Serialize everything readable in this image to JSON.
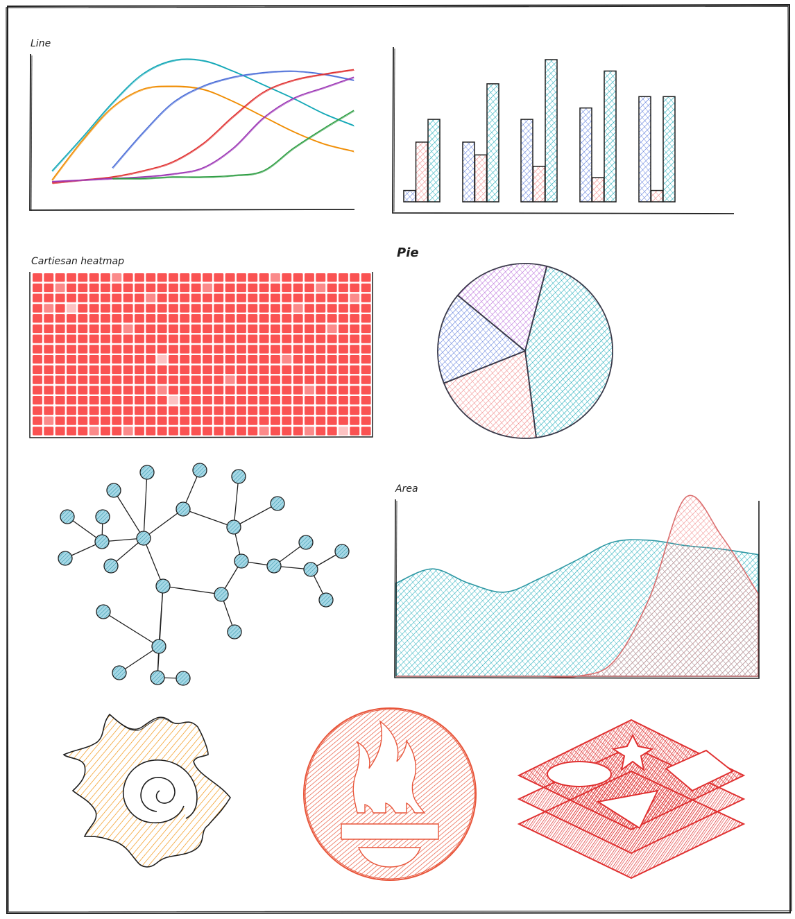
{
  "colors": {
    "ink": "#1e1e1e",
    "teal": "#12a7b6",
    "teal_fill": "#8fd3dc",
    "salmon": "#f08080",
    "salmon_fill": "#f7b3b3",
    "blue": "#4d6fd8",
    "blue_fill": "#9fb6ec",
    "orange": "#f08c00",
    "red": "#e03131",
    "purple": "#9c36b5",
    "purple_fill": "#d9a4ec",
    "green": "#2f9e44",
    "heat": "#fa5252",
    "heat_light": "#fcc2c2",
    "node_fill": "#a5d8e6",
    "grafana_fill": "#f7b267",
    "prom_fill": "#ef6a4c",
    "stack_fill": "#e03131"
  },
  "chart_data": [
    {
      "type": "line",
      "title": "Line",
      "x": [
        0,
        1,
        2,
        3,
        4,
        5,
        6,
        7,
        8,
        9,
        10
      ],
      "ylim": [
        0,
        100
      ],
      "series": [
        {
          "color": "teal",
          "values": [
            20,
            42,
            65,
            84,
            93,
            93,
            86,
            77,
            68,
            58,
            50
          ]
        },
        {
          "color": "orange",
          "values": [
            14,
            40,
            62,
            74,
            76,
            74,
            66,
            56,
            46,
            38,
            33
          ]
        },
        {
          "color": "blue",
          "start": 2,
          "values": [
            null,
            null,
            22,
            45,
            65,
            76,
            82,
            85,
            86,
            84,
            80
          ]
        },
        {
          "color": "red",
          "values": [
            12,
            14,
            16,
            20,
            26,
            38,
            56,
            72,
            80,
            84,
            87
          ]
        },
        {
          "color": "purple",
          "values": [
            13,
            14,
            15,
            16,
            18,
            22,
            35,
            55,
            68,
            75,
            82
          ]
        },
        {
          "color": "green",
          "start": 2,
          "values": [
            null,
            null,
            15,
            15,
            16,
            16,
            17,
            20,
            35,
            48,
            60
          ]
        }
      ]
    },
    {
      "type": "bar",
      "categories": [
        "1",
        "2",
        "3",
        "4",
        "5"
      ],
      "ylim": [
        0,
        100
      ],
      "series": [
        {
          "color": "blue",
          "values": [
            8,
            42,
            58,
            66,
            74
          ]
        },
        {
          "color": "salmon",
          "values": [
            42,
            33,
            25,
            17,
            8
          ]
        },
        {
          "color": "teal",
          "values": [
            58,
            83,
            100,
            92,
            74
          ]
        }
      ]
    },
    {
      "type": "heatmap",
      "title": "Cartiesan heatmap",
      "rows": 16,
      "cols": 30,
      "levels": "0 = full, 1 = light, 2 = pale",
      "values": [
        [
          0,
          0,
          0,
          0,
          0,
          0,
          0,
          1,
          0,
          0,
          0,
          0,
          0,
          0,
          0,
          0,
          0,
          0,
          0,
          0,
          0,
          1,
          0,
          0,
          0,
          0,
          0,
          0,
          0,
          0
        ],
        [
          0,
          0,
          1,
          0,
          0,
          0,
          0,
          0,
          0,
          0,
          0,
          0,
          0,
          0,
          0,
          1,
          0,
          0,
          0,
          0,
          0,
          0,
          0,
          0,
          0,
          1,
          0,
          0,
          0,
          0
        ],
        [
          0,
          0,
          0,
          0,
          0,
          0,
          0,
          0,
          0,
          0,
          1,
          0,
          0,
          0,
          0,
          0,
          0,
          0,
          0,
          0,
          0,
          0,
          0,
          0,
          0,
          0,
          0,
          0,
          1,
          0
        ],
        [
          0,
          1,
          0,
          2,
          0,
          0,
          0,
          0,
          0,
          0,
          0,
          0,
          0,
          0,
          0,
          0,
          0,
          0,
          0,
          0,
          0,
          0,
          0,
          1,
          0,
          0,
          0,
          0,
          0,
          0
        ],
        [
          0,
          0,
          0,
          0,
          0,
          0,
          0,
          0,
          0,
          0,
          0,
          0,
          0,
          0,
          0,
          0,
          0,
          0,
          0,
          0,
          0,
          0,
          0,
          0,
          0,
          0,
          0,
          0,
          0,
          0
        ],
        [
          0,
          0,
          0,
          0,
          0,
          0,
          0,
          0,
          1,
          0,
          0,
          0,
          0,
          0,
          0,
          0,
          0,
          0,
          0,
          0,
          0,
          0,
          0,
          0,
          0,
          0,
          1,
          0,
          0,
          0
        ],
        [
          0,
          0,
          0,
          0,
          0,
          0,
          0,
          0,
          0,
          0,
          0,
          0,
          0,
          0,
          0,
          0,
          0,
          0,
          0,
          0,
          0,
          0,
          0,
          0,
          0,
          0,
          0,
          0,
          0,
          0
        ],
        [
          0,
          0,
          0,
          0,
          0,
          0,
          0,
          0,
          0,
          0,
          0,
          0,
          0,
          0,
          0,
          0,
          0,
          0,
          0,
          0,
          0,
          0,
          0,
          0,
          0,
          0,
          0,
          0,
          0,
          0
        ],
        [
          0,
          0,
          0,
          0,
          0,
          0,
          0,
          0,
          0,
          0,
          0,
          2,
          0,
          0,
          0,
          0,
          0,
          0,
          0,
          0,
          0,
          0,
          1,
          0,
          0,
          0,
          0,
          0,
          0,
          0
        ],
        [
          0,
          0,
          0,
          0,
          0,
          0,
          0,
          0,
          0,
          0,
          0,
          0,
          0,
          0,
          0,
          0,
          0,
          0,
          0,
          0,
          0,
          0,
          0,
          0,
          0,
          0,
          0,
          0,
          0,
          0
        ],
        [
          0,
          0,
          0,
          0,
          0,
          0,
          0,
          0,
          0,
          0,
          0,
          0,
          0,
          0,
          0,
          0,
          0,
          1,
          0,
          0,
          0,
          0,
          0,
          0,
          0,
          0,
          0,
          0,
          0,
          0
        ],
        [
          0,
          0,
          0,
          0,
          0,
          0,
          0,
          0,
          0,
          0,
          0,
          1,
          0,
          0,
          0,
          0,
          0,
          0,
          0,
          0,
          0,
          0,
          0,
          0,
          1,
          0,
          0,
          0,
          0,
          0
        ],
        [
          0,
          0,
          0,
          0,
          0,
          0,
          0,
          0,
          0,
          0,
          0,
          0,
          2,
          0,
          0,
          0,
          0,
          0,
          0,
          0,
          0,
          0,
          0,
          0,
          0,
          0,
          0,
          0,
          0,
          0
        ],
        [
          0,
          0,
          0,
          0,
          0,
          0,
          0,
          0,
          0,
          0,
          0,
          0,
          0,
          0,
          0,
          0,
          0,
          0,
          0,
          0,
          0,
          0,
          0,
          0,
          0,
          0,
          0,
          0,
          0,
          0
        ],
        [
          0,
          1,
          0,
          0,
          0,
          0,
          0,
          0,
          0,
          0,
          0,
          0,
          0,
          0,
          0,
          0,
          0,
          0,
          0,
          0,
          0,
          0,
          0,
          0,
          0,
          0,
          0,
          0,
          0,
          0
        ],
        [
          0,
          0,
          0,
          0,
          0,
          1,
          0,
          0,
          1,
          0,
          0,
          0,
          0,
          0,
          0,
          0,
          0,
          0,
          0,
          0,
          1,
          0,
          0,
          0,
          1,
          0,
          0,
          2,
          0,
          0
        ]
      ]
    },
    {
      "type": "pie",
      "title": "Pie",
      "slices": [
        {
          "color": "teal",
          "value": 44
        },
        {
          "color": "salmon",
          "value": 21
        },
        {
          "color": "blue",
          "value": 17
        },
        {
          "color": "purple",
          "value": 18
        }
      ]
    },
    {
      "type": "area",
      "title": "Area",
      "x": [
        0,
        1,
        2,
        3,
        4,
        5,
        6,
        7,
        8,
        9,
        10
      ],
      "ylim": [
        0,
        100
      ],
      "series": [
        {
          "color": "teal",
          "values": [
            52,
            60,
            52,
            47,
            55,
            65,
            75,
            76,
            73,
            71,
            68
          ]
        },
        {
          "color": "salmon",
          "values": [
            0,
            0,
            0,
            0,
            0,
            0,
            8,
            44,
            100,
            78,
            46
          ]
        }
      ]
    },
    {
      "type": "diagram",
      "nodes": [
        "c1",
        "c2",
        "c3",
        "c4",
        "c5",
        "c6",
        "a1",
        "a2",
        "a3",
        "a4",
        "a5",
        "a6",
        "a7",
        "b1",
        "b2",
        "b3",
        "b4",
        "d1",
        "d2",
        "d3",
        "d4",
        "d5",
        "d6",
        "d7",
        "e1",
        "e2",
        "e3",
        "e4",
        "f1"
      ],
      "edges": [
        [
          "c1",
          "c2"
        ],
        [
          "c2",
          "c3"
        ],
        [
          "c3",
          "c4"
        ],
        [
          "c4",
          "c5"
        ],
        [
          "c5",
          "c6"
        ],
        [
          "c6",
          "c1"
        ],
        [
          "c1",
          "a1"
        ],
        [
          "a1",
          "a2"
        ],
        [
          "a1",
          "a3"
        ],
        [
          "a1",
          "a4"
        ],
        [
          "c1",
          "a5"
        ],
        [
          "c1",
          "a6"
        ],
        [
          "c1",
          "a7"
        ],
        [
          "c2",
          "b1"
        ],
        [
          "c2",
          "b2"
        ],
        [
          "c3",
          "b3"
        ],
        [
          "c3",
          "b4"
        ],
        [
          "c4",
          "d1"
        ],
        [
          "d1",
          "d2"
        ],
        [
          "d1",
          "d3"
        ],
        [
          "d2",
          "d4"
        ],
        [
          "d2",
          "d5"
        ],
        [
          "d2",
          "d6"
        ],
        [
          "c5",
          "f1"
        ],
        [
          "c6",
          "e1"
        ],
        [
          "c6",
          "e2"
        ],
        [
          "e1",
          "e2"
        ],
        [
          "e2",
          "e3"
        ],
        [
          "e2",
          "e4"
        ],
        [
          "e1",
          "d7"
        ]
      ]
    }
  ],
  "logos": {
    "grafana": "grafana-logo",
    "prometheus": "prometheus-logo",
    "stack": "layered-stack-logo"
  }
}
